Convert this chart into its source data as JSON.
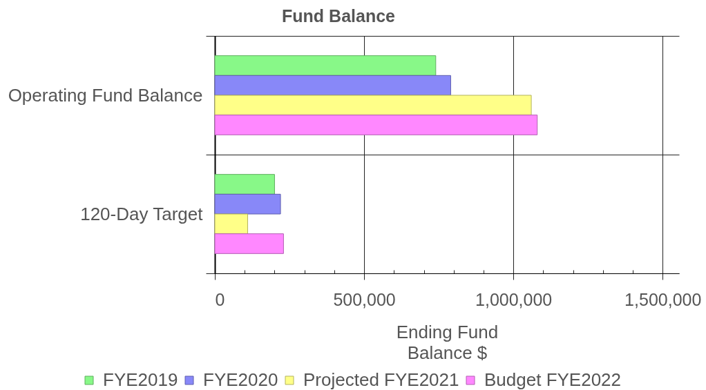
{
  "chart_data": {
    "type": "bar",
    "orientation": "horizontal",
    "title": "Fund Balance",
    "xlabel": "Ending Fund Balance $",
    "categories": [
      "Operating Fund Balance",
      "120-Day Target"
    ],
    "series": [
      {
        "name": "FYE2019",
        "color": "#88f888",
        "values": [
          740000,
          200000
        ]
      },
      {
        "name": "FYE2020",
        "color": "#8888f8",
        "values": [
          790000,
          220000
        ]
      },
      {
        "name": "Projected FYE2021",
        "color": "#ffff88",
        "values": [
          1060000,
          110000
        ]
      },
      {
        "name": "Budget FYE2022",
        "color": "#ff88ff",
        "values": [
          1080000,
          230000
        ]
      }
    ],
    "xlim": [
      0,
      1555000
    ],
    "xticks": [
      0,
      {
        "value": 100000,
        "label": null
      },
      {
        "value": 200000,
        "label": null
      },
      {
        "value": 300000,
        "label": null
      },
      {
        "value": 400000,
        "label": null
      },
      {
        "value": 500000,
        "label": "500,000"
      },
      {
        "value": 600000,
        "label": null
      },
      {
        "value": 700000,
        "label": null
      },
      {
        "value": 800000,
        "label": null
      },
      {
        "value": 900000,
        "label": null
      },
      {
        "value": 1000000,
        "label": "1,000,000"
      },
      {
        "value": 1100000,
        "label": null
      },
      {
        "value": 1200000,
        "label": null
      },
      {
        "value": 1300000,
        "label": null
      },
      {
        "value": 1400000,
        "label": null
      },
      {
        "value": 1500000,
        "label": "1,500,000"
      }
    ],
    "grid": true,
    "legend": "bottom"
  }
}
